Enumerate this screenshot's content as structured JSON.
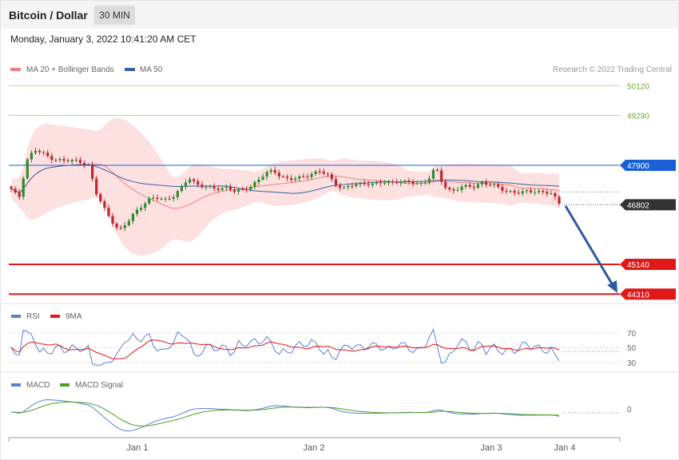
{
  "header": {
    "title": "Bitcoin / Dollar",
    "timeframe": "30 MIN",
    "datetime": "Monday, January 3, 2022 10:41:20 AM CET"
  },
  "main_legend": {
    "ma20_label": "MA 20 + Bollinger Bands",
    "ma50_label": "MA 50",
    "copyright": "Research © 2022 Trading Central"
  },
  "price_levels": [
    {
      "value": "50120",
      "color": "#6aaa3a",
      "style": "thin"
    },
    {
      "value": "49290",
      "color": "#6aaa3a",
      "style": "thin"
    },
    {
      "value": "47900",
      "color": "#1a5fd6",
      "style": "pivot"
    },
    {
      "value": "46802",
      "color": "#333333",
      "style": "current"
    },
    {
      "value": "45140",
      "color": "#e01818",
      "style": "support"
    },
    {
      "value": "44310",
      "color": "#e01818",
      "style": "support"
    }
  ],
  "rsi_panel": {
    "legend": [
      "RSI",
      "9MA"
    ],
    "levels": [
      "70",
      "50",
      "30"
    ]
  },
  "macd_panel": {
    "legend": [
      "MACD",
      "MACD Signal"
    ],
    "zero_label": "0"
  },
  "x_axis": [
    "Jan 1",
    "Jan 2",
    "Jan 3",
    "Jan 4"
  ],
  "colors": {
    "up_candle": "#2e8b2e",
    "down_candle": "#c0272d",
    "bollinger_fill": "#fde0e0",
    "ma20": "#f08080",
    "ma50": "#3a5fa8",
    "rsi": "#5b7fd6",
    "rsi_ma": "#e01818",
    "macd": "#5b7fd6",
    "macd_signal": "#4aa020",
    "forecast_arrow": "#2f5a9e"
  },
  "chart_data": {
    "type": "candlestick",
    "instrument": "Bitcoin / Dollar",
    "interval": "30 MIN",
    "ylim": [
      44000,
      50300
    ],
    "x_ticks": [
      "Jan 1",
      "Jan 2",
      "Jan 3",
      "Jan 4"
    ],
    "overlays": [
      "MA 20 + Bollinger Bands",
      "MA 50"
    ],
    "levels": [
      50120,
      49290,
      47900,
      46802,
      45140,
      44310
    ],
    "last_price": 46802,
    "forecast_target": 44310,
    "closes_sampled": [
      47220,
      46980,
      48040,
      48330,
      48230,
      48120,
      48060,
      48010,
      48030,
      48010,
      47900,
      47120,
      46720,
      46380,
      46060,
      46280,
      46600,
      46800,
      46950,
      46990,
      46960,
      47040,
      47230,
      47560,
      47390,
      47300,
      47240,
      47260,
      47300,
      47160,
      47200,
      47330,
      47490,
      47670,
      47750,
      47600,
      47500,
      47520,
      47600,
      47680,
      47720,
      47620,
      47400,
      47250,
      47320,
      47380,
      47420,
      47360,
      47410,
      47430,
      47460,
      47420,
      47410,
      47400,
      47500,
      47820,
      47340,
      47190,
      47260,
      47300,
      47320,
      47430,
      47350,
      47290,
      47210,
      47150,
      47120,
      47180,
      47200,
      47140,
      47100,
      46850
    ]
  }
}
